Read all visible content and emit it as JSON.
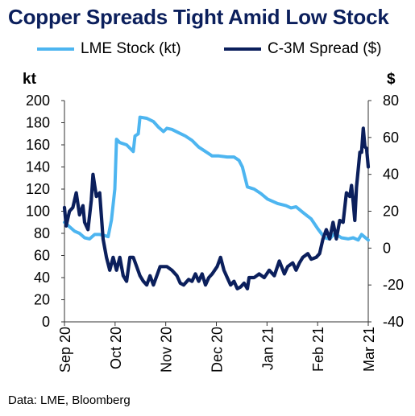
{
  "chart_data": {
    "type": "line",
    "title": "Copper Spreads Tight Amid Low Stock",
    "source": "Data: LME, Bloomberg",
    "x_ticks": [
      "Sep 20",
      "Oct 20",
      "Nov 20",
      "Dec 20",
      "Jan 21",
      "Feb 21",
      "Mar 21"
    ],
    "x_range": [
      "2020-09-01",
      "2021-03-01"
    ],
    "left_axis": {
      "unit_label": "kt",
      "range": [
        0,
        200
      ],
      "ticks": [
        0,
        20,
        40,
        60,
        80,
        100,
        120,
        140,
        160,
        180,
        200
      ]
    },
    "right_axis": {
      "unit_label": "$",
      "range": [
        -40,
        80
      ],
      "ticks": [
        -40,
        -20,
        0,
        20,
        40,
        60,
        80
      ]
    },
    "grid": false,
    "legend_position": "top",
    "series": [
      {
        "name": "LME Stock (kt)",
        "axis": "left",
        "color": "#4db5f0",
        "points": [
          [
            "2020-09-01",
            90
          ],
          [
            "2020-09-04",
            86
          ],
          [
            "2020-09-07",
            82
          ],
          [
            "2020-09-10",
            80
          ],
          [
            "2020-09-13",
            76
          ],
          [
            "2020-09-16",
            75
          ],
          [
            "2020-09-19",
            79
          ],
          [
            "2020-09-22",
            79
          ],
          [
            "2020-09-25",
            78
          ],
          [
            "2020-09-27",
            77
          ],
          [
            "2020-09-29",
            92
          ],
          [
            "2020-10-01",
            120
          ],
          [
            "2020-10-02",
            165
          ],
          [
            "2020-10-04",
            162
          ],
          [
            "2020-10-08",
            160
          ],
          [
            "2020-10-12",
            154
          ],
          [
            "2020-10-13",
            168
          ],
          [
            "2020-10-15",
            170
          ],
          [
            "2020-10-16",
            185
          ],
          [
            "2020-10-20",
            184
          ],
          [
            "2020-10-24",
            181
          ],
          [
            "2020-10-27",
            176
          ],
          [
            "2020-10-30",
            172
          ],
          [
            "2020-11-01",
            175
          ],
          [
            "2020-11-04",
            174
          ],
          [
            "2020-11-08",
            171
          ],
          [
            "2020-11-12",
            168
          ],
          [
            "2020-11-16",
            164
          ],
          [
            "2020-11-20",
            158
          ],
          [
            "2020-11-24",
            154
          ],
          [
            "2020-11-28",
            150
          ],
          [
            "2020-12-02",
            150
          ],
          [
            "2020-12-07",
            149
          ],
          [
            "2020-12-11",
            149
          ],
          [
            "2020-12-14",
            146
          ],
          [
            "2020-12-16",
            140
          ],
          [
            "2020-12-19",
            122
          ],
          [
            "2020-12-23",
            120
          ],
          [
            "2020-12-27",
            116
          ],
          [
            "2020-12-31",
            111
          ],
          [
            "2021-01-06",
            107
          ],
          [
            "2021-01-11",
            105
          ],
          [
            "2021-01-14",
            103
          ],
          [
            "2021-01-17",
            104
          ],
          [
            "2021-01-21",
            99
          ],
          [
            "2021-01-26",
            93
          ],
          [
            "2021-01-30",
            84
          ],
          [
            "2021-02-03",
            76
          ],
          [
            "2021-02-06",
            75
          ],
          [
            "2021-02-09",
            80
          ],
          [
            "2021-02-13",
            76
          ],
          [
            "2021-02-17",
            75
          ],
          [
            "2021-02-20",
            76
          ],
          [
            "2021-02-23",
            74
          ],
          [
            "2021-02-25",
            79
          ],
          [
            "2021-03-01",
            74
          ]
        ]
      },
      {
        "name": "C-3M Spread ($)",
        "axis": "right",
        "color": "#0b1f5c",
        "points": [
          [
            "2020-09-01",
            22
          ],
          [
            "2020-09-02",
            12
          ],
          [
            "2020-09-04",
            20
          ],
          [
            "2020-09-06",
            22
          ],
          [
            "2020-09-08",
            30
          ],
          [
            "2020-09-10",
            18
          ],
          [
            "2020-09-12",
            23
          ],
          [
            "2020-09-13",
            14
          ],
          [
            "2020-09-15",
            10
          ],
          [
            "2020-09-17",
            26
          ],
          [
            "2020-09-18",
            40
          ],
          [
            "2020-09-20",
            28
          ],
          [
            "2020-09-22",
            30
          ],
          [
            "2020-09-24",
            5
          ],
          [
            "2020-09-26",
            -5
          ],
          [
            "2020-09-28",
            -12
          ],
          [
            "2020-09-30",
            -5
          ],
          [
            "2020-10-02",
            -12
          ],
          [
            "2020-10-04",
            -5
          ],
          [
            "2020-10-06",
            -15
          ],
          [
            "2020-10-08",
            -18
          ],
          [
            "2020-10-10",
            -5
          ],
          [
            "2020-10-12",
            -5
          ],
          [
            "2020-10-14",
            -10
          ],
          [
            "2020-10-16",
            -15
          ],
          [
            "2020-10-18",
            -18
          ],
          [
            "2020-10-20",
            -20
          ],
          [
            "2020-10-22",
            -15
          ],
          [
            "2020-10-24",
            -20
          ],
          [
            "2020-10-26",
            -15
          ],
          [
            "2020-10-28",
            -10
          ],
          [
            "2020-11-01",
            -10
          ],
          [
            "2020-11-04",
            -12
          ],
          [
            "2020-11-07",
            -15
          ],
          [
            "2020-11-09",
            -19
          ],
          [
            "2020-11-11",
            -20
          ],
          [
            "2020-11-14",
            -17
          ],
          [
            "2020-11-16",
            -18
          ],
          [
            "2020-11-18",
            -14
          ],
          [
            "2020-11-20",
            -18
          ],
          [
            "2020-11-22",
            -14
          ],
          [
            "2020-11-24",
            -20
          ],
          [
            "2020-11-26",
            -16
          ],
          [
            "2020-11-28",
            -14
          ],
          [
            "2020-12-01",
            -10
          ],
          [
            "2020-12-03",
            -5
          ],
          [
            "2020-12-05",
            -12
          ],
          [
            "2020-12-07",
            -16
          ],
          [
            "2020-12-09",
            -20
          ],
          [
            "2020-12-11",
            -18
          ],
          [
            "2020-12-13",
            -22
          ],
          [
            "2020-12-15",
            -21
          ],
          [
            "2020-12-17",
            -19
          ],
          [
            "2020-12-19",
            -22
          ],
          [
            "2020-12-20",
            -16
          ],
          [
            "2020-12-23",
            -16
          ],
          [
            "2020-12-26",
            -14
          ],
          [
            "2020-12-29",
            -16
          ],
          [
            "2021-01-01",
            -12
          ],
          [
            "2021-01-04",
            -15
          ],
          [
            "2021-01-07",
            -7
          ],
          [
            "2021-01-10",
            -14
          ],
          [
            "2021-01-12",
            -10
          ],
          [
            "2021-01-15",
            -8
          ],
          [
            "2021-01-17",
            -12
          ],
          [
            "2021-01-19",
            -8
          ],
          [
            "2021-01-21",
            -5
          ],
          [
            "2021-01-24",
            -3
          ],
          [
            "2021-01-26",
            -6
          ],
          [
            "2021-01-29",
            -5
          ],
          [
            "2021-01-31",
            -3
          ],
          [
            "2021-02-02",
            5
          ],
          [
            "2021-02-04",
            10
          ],
          [
            "2021-02-06",
            5
          ],
          [
            "2021-02-08",
            14
          ],
          [
            "2021-02-10",
            5
          ],
          [
            "2021-02-12",
            15
          ],
          [
            "2021-02-14",
            14
          ],
          [
            "2021-02-16",
            30
          ],
          [
            "2021-02-18",
            28
          ],
          [
            "2021-02-19",
            34
          ],
          [
            "2021-02-20",
            25
          ],
          [
            "2021-02-21",
            15
          ],
          [
            "2021-02-22",
            33
          ],
          [
            "2021-02-24",
            52
          ],
          [
            "2021-02-25",
            52
          ],
          [
            "2021-02-26",
            65
          ],
          [
            "2021-02-27",
            55
          ],
          [
            "2021-02-28",
            54
          ],
          [
            "2021-03-01",
            44
          ]
        ]
      }
    ]
  }
}
